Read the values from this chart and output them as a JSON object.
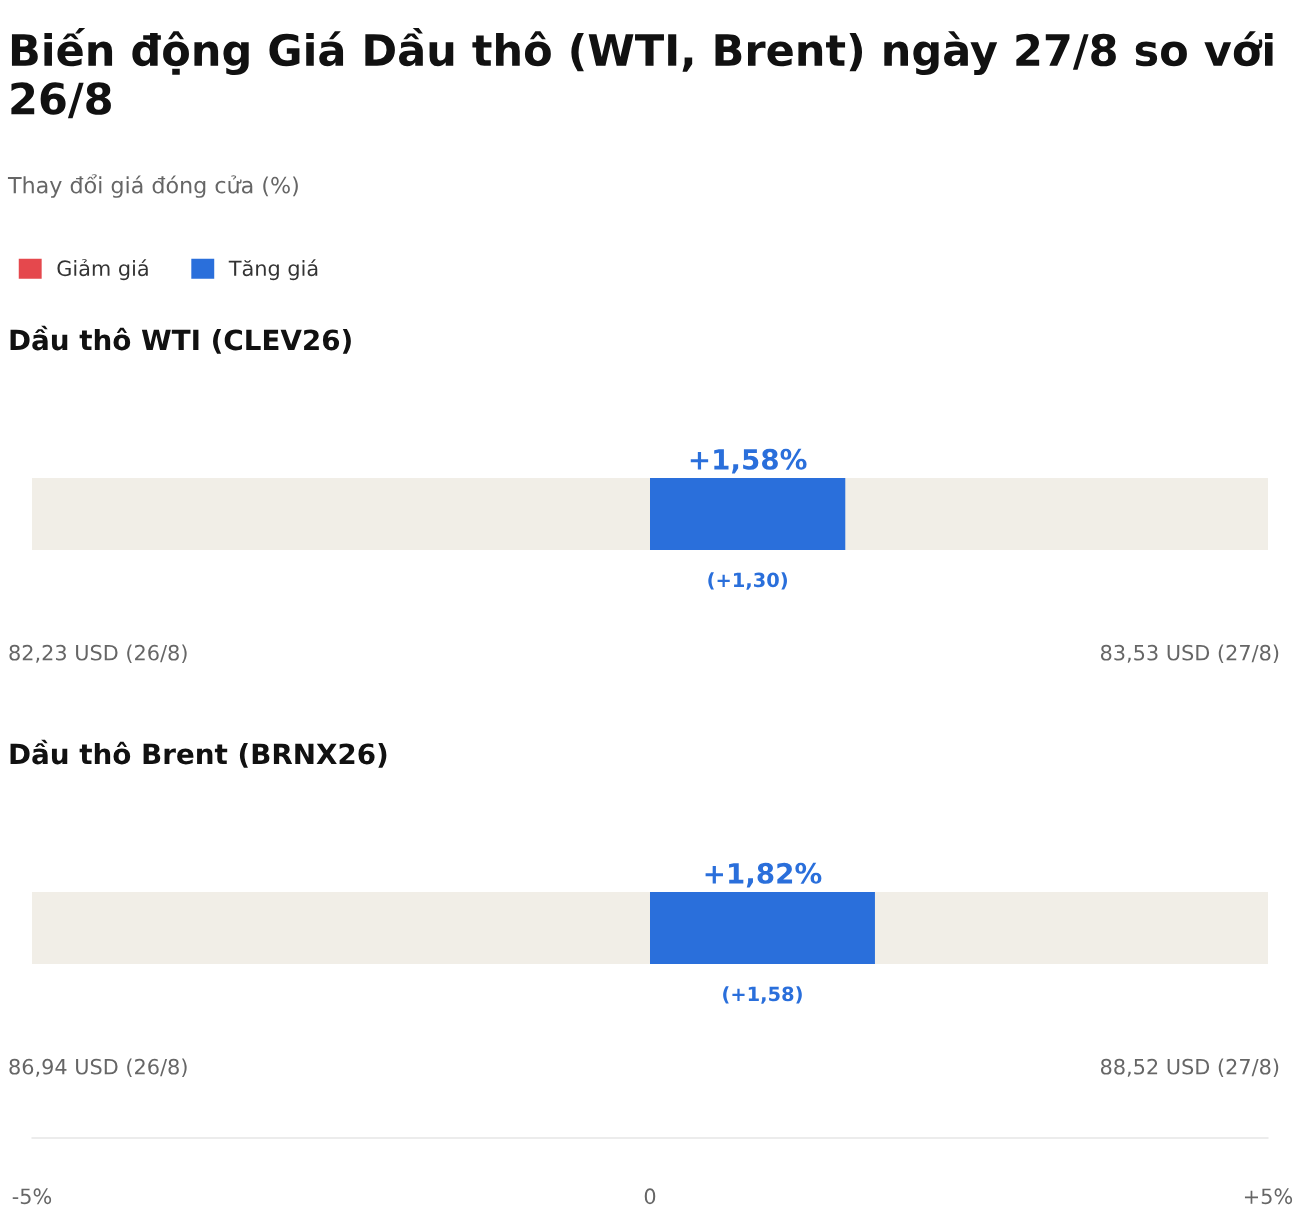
{
  "chart_data": {
    "type": "bar",
    "orientation": "horizontal",
    "title": "Biến động Giá Dầu thô (WTI, Brent) ngày 27/8 so với 26/8",
    "subtitle": "Thay đổi giá đóng cửa (%)",
    "categories": [
      "Dầu thô WTI (CLEV26)",
      "Dầu thô Brent (BRNX26)"
    ],
    "series": [
      {
        "name": "Giảm giá",
        "color": "#e5484d",
        "values": [
          null,
          null
        ]
      },
      {
        "name": "Tăng giá",
        "color": "#2a6fdb",
        "values": [
          1.58,
          1.82
        ],
        "value_labels": [
          "+1,58%",
          "+1,82%"
        ]
      }
    ],
    "xlim": [
      -5,
      5
    ],
    "xticks": [
      {
        "value": -5,
        "label": "-5%"
      },
      {
        "value": 0,
        "label": "0"
      },
      {
        "value": 5,
        "label": "+5%"
      }
    ],
    "legend": "top left",
    "grid": false,
    "annotations": [
      "(+1,30)",
      "82,23 USD (26/8)",
      "83,53 USD (27/8)",
      "(+1,58)",
      "86,94 USD (26/8)",
      "88,52 USD (27/8)"
    ]
  }
}
